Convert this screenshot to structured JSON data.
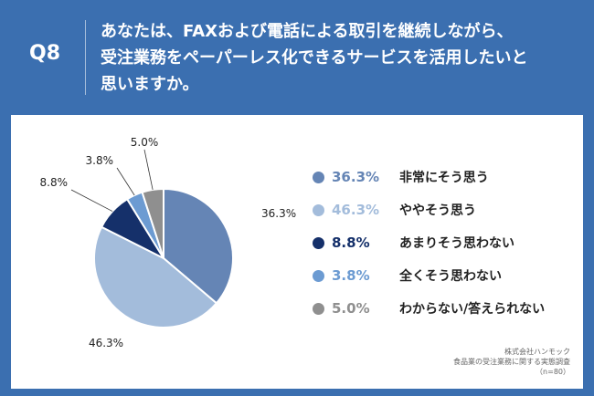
{
  "question": {
    "number": "Q8",
    "lines": [
      "あなたは、FAXおよび電話による取引を継続しながら、",
      "受注業務をペーパーレス化できるサービスを活用したいと",
      "思いますか。"
    ]
  },
  "colors": {
    "background": "#3b6fb0",
    "slices": [
      "#6585b5",
      "#a3bcdb",
      "#15306a",
      "#6c9bd2",
      "#8f8f8f"
    ]
  },
  "chart_data": {
    "type": "pie",
    "start": "12 o'clock, clockwise",
    "categories": [
      "非常にそう思う",
      "ややそう思う",
      "あまりそう思わない",
      "全くそう思わない",
      "わからない/答えられない"
    ],
    "values": [
      36.3,
      46.3,
      8.8,
      3.8,
      5.0
    ],
    "data_labels": [
      "36.3%",
      "46.3%",
      "8.8%",
      "3.8%",
      "5.0%"
    ],
    "legend_placement": "right"
  },
  "source": {
    "lines": [
      "株式会社ハンモック",
      "食品業の受注業務に関する実態調査",
      "（n=80）"
    ]
  }
}
